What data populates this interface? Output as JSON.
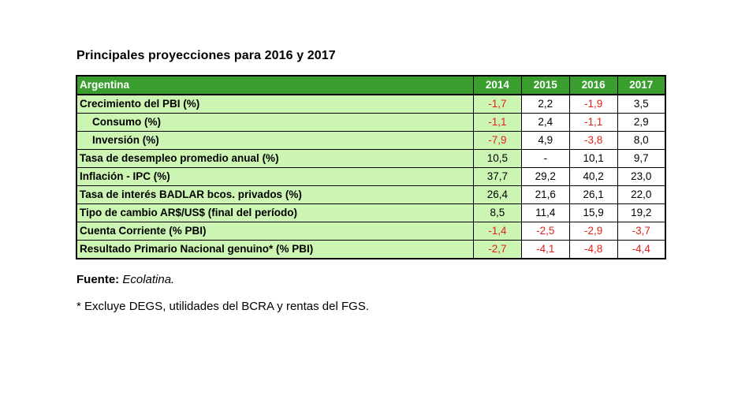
{
  "title": "Principales proyecciones para 2016 y 2017",
  "table": {
    "header": {
      "label": "Argentina",
      "years": [
        "2014",
        "2015",
        "2016",
        "2017"
      ]
    },
    "rows": [
      {
        "label": "Crecimiento del PBI (%)",
        "indent": false,
        "values": [
          "-1,7",
          "2,2",
          "-1,9",
          "3,5"
        ]
      },
      {
        "label": "Consumo (%)",
        "indent": true,
        "values": [
          "-1,1",
          "2,4",
          "-1,1",
          "2,9"
        ]
      },
      {
        "label": "Inversión (%)",
        "indent": true,
        "values": [
          "-7,9",
          "4,9",
          "-3,8",
          "8,0"
        ]
      },
      {
        "label": "Tasa de desempleo promedio anual (%)",
        "indent": false,
        "values": [
          "10,5",
          "-",
          "10,1",
          "9,7"
        ]
      },
      {
        "label": "Inflación - IPC (%)",
        "indent": false,
        "values": [
          "37,7",
          "29,2",
          "40,2",
          "23,0"
        ]
      },
      {
        "label": "Tasa de interés BADLAR bcos. privados (%)",
        "indent": false,
        "values": [
          "26,4",
          "21,6",
          "26,1",
          "22,0"
        ]
      },
      {
        "label": "Tipo de cambio AR$/US$ (final del período)",
        "indent": false,
        "values": [
          "8,5",
          "11,4",
          "15,9",
          "19,2"
        ]
      },
      {
        "label": "Cuenta Corriente (% PBI)",
        "indent": false,
        "values": [
          "-1,4",
          "-2,5",
          "-2,9",
          "-3,7"
        ]
      },
      {
        "label": "Resultado Primario Nacional genuino* (% PBI)",
        "indent": false,
        "values": [
          "-2,7",
          "-4,1",
          "-4,8",
          "-4,4"
        ]
      }
    ]
  },
  "source": {
    "prefix": "Fuente:",
    "name": "Ecolatina."
  },
  "footnote": "* Excluye DEGS, utilidades del BCRA y rentas del FGS.",
  "colors": {
    "header_bg": "#3a9e2e",
    "label_bg": "#ccf5b3",
    "negative": "#e3211c"
  }
}
